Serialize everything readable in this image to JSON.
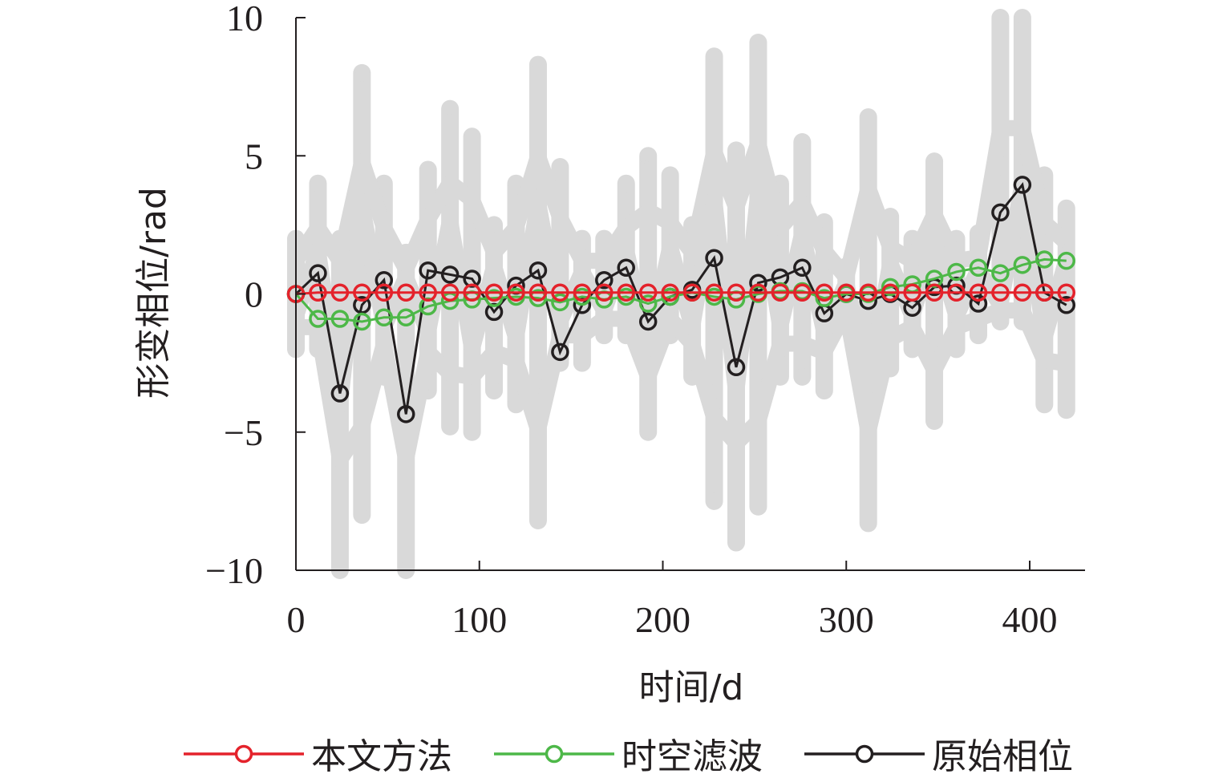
{
  "chart_data": {
    "type": "line",
    "title": "",
    "xlabel": "时间/d",
    "ylabel": "形变相位/rad",
    "xlim": [
      0,
      430
    ],
    "ylim": [
      -10,
      10
    ],
    "xticks": [
      "0",
      "100",
      "200",
      "300",
      "400"
    ],
    "yticks": [
      "10",
      "5",
      "0",
      "−5",
      "−10"
    ],
    "grid": false,
    "legend_position": "bottom",
    "x": [
      0,
      12,
      24,
      36,
      48,
      60,
      72,
      84,
      96,
      108,
      120,
      132,
      144,
      156,
      168,
      180,
      192,
      204,
      216,
      228,
      240,
      252,
      264,
      276,
      288,
      300,
      312,
      324,
      336,
      348,
      360,
      372,
      384,
      396,
      408,
      420
    ],
    "background_envelope": {
      "color": "#d9d9d9",
      "upper": [
        2,
        4,
        2,
        8,
        4,
        1.5,
        4.5,
        6.7,
        5.7,
        2.5,
        4,
        8.3,
        4.6,
        2,
        2,
        4,
        5,
        4.3,
        2.5,
        8.6,
        5.2,
        9.1,
        4,
        5.5,
        2.6,
        1,
        6.4,
        2.8,
        2,
        4.8,
        2,
        2.2,
        10,
        10,
        4.3,
        3.1
      ],
      "lower": [
        -2,
        -2,
        -10,
        -8,
        -3,
        -10,
        -3.5,
        -4.8,
        -5,
        -3.5,
        -4,
        -8.2,
        -2.5,
        -2.5,
        -1.5,
        -1.5,
        -5,
        -1.5,
        -3,
        -7.5,
        -9,
        -7.7,
        -3,
        -3,
        -3.5,
        -1,
        -8.3,
        -2.7,
        -2,
        -4.6,
        -2,
        -1.5,
        -1,
        -1,
        -4,
        -4.2
      ]
    },
    "series": [
      {
        "name": "原始相位",
        "color": "#231f20",
        "values": [
          0,
          0.75,
          -3.6,
          -0.4,
          0.5,
          -4.35,
          0.85,
          0.7,
          0.55,
          -0.65,
          0.3,
          0.85,
          -2.1,
          -0.4,
          0.5,
          0.95,
          -1.0,
          -0.1,
          0.15,
          1.3,
          -2.65,
          0.4,
          0.6,
          0.95,
          -0.7,
          0,
          -0.25,
          0,
          -0.5,
          0.25,
          0.3,
          -0.35,
          2.95,
          3.95,
          0.05,
          -0.4
        ]
      },
      {
        "name": "时空滤波",
        "color": "#4db848",
        "values": [
          0,
          -0.9,
          -0.9,
          -1.0,
          -0.85,
          -0.85,
          -0.45,
          -0.25,
          -0.2,
          -0.15,
          -0.1,
          -0.15,
          -0.3,
          -0.1,
          -0.2,
          -0.1,
          -0.35,
          -0.1,
          0.05,
          -0.1,
          -0.2,
          0,
          0.1,
          0.1,
          -0.15,
          0,
          0,
          0.25,
          0.35,
          0.55,
          0.8,
          0.95,
          0.75,
          1.05,
          1.25,
          1.2
        ]
      },
      {
        "name": "本文方法",
        "color": "#e4222b",
        "values": [
          0,
          0.05,
          0.05,
          0.05,
          0.05,
          0.05,
          0.05,
          0.05,
          0.05,
          0.05,
          0.05,
          0.05,
          0.05,
          0.05,
          0.05,
          0.05,
          0.05,
          0.05,
          0.05,
          0.05,
          0.05,
          0.05,
          0.05,
          0.05,
          0.05,
          0.05,
          0.05,
          0.05,
          0.05,
          0.05,
          0.05,
          0.05,
          0.05,
          0.05,
          0.05,
          0.05
        ]
      }
    ],
    "legend": [
      "本文方法",
      "时空滤波",
      "原始相位"
    ]
  }
}
